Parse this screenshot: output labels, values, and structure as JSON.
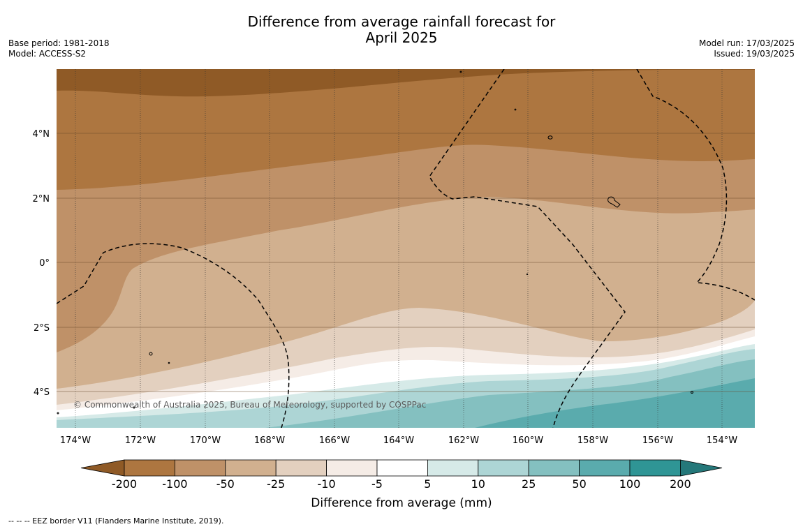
{
  "title": {
    "line1": "Difference from average rainfall forecast for",
    "line2": "April 2025"
  },
  "meta_left": {
    "base_period": "Base period: 1981-2018",
    "model": "Model: ACCESS-S2"
  },
  "meta_right": {
    "model_run": "Model run: 17/03/2025",
    "issued": "Issued: 19/03/2025"
  },
  "map": {
    "lon_ticks": [
      "174°W",
      "172°W",
      "170°W",
      "168°W",
      "166°W",
      "164°W",
      "162°W",
      "160°W",
      "158°W",
      "156°W",
      "154°W"
    ],
    "lat_ticks": [
      "4°N",
      "2°N",
      "0°",
      "2°S",
      "4°S"
    ],
    "copyright": "© Commonwealth of Australia 2025, Bureau of Meteorology, supported by COSPPac"
  },
  "colorbar": {
    "labels": [
      "-200",
      "-100",
      "-50",
      "-25",
      "-10",
      "-5",
      "5",
      "10",
      "25",
      "50",
      "100",
      "200"
    ],
    "colors": [
      "#8f5a26",
      "#ad7640",
      "#bf9168",
      "#d1b08f",
      "#e3d0bf",
      "#f5ece6",
      "#ffffff",
      "#d6eae8",
      "#add5d5",
      "#84c0c0",
      "#5aabad",
      "#2f9595",
      "#25787a"
    ],
    "title": "Difference from average (mm)"
  },
  "footer": "--  --  -- EEZ border V11 (Flanders Marine Institute, 2019)."
}
